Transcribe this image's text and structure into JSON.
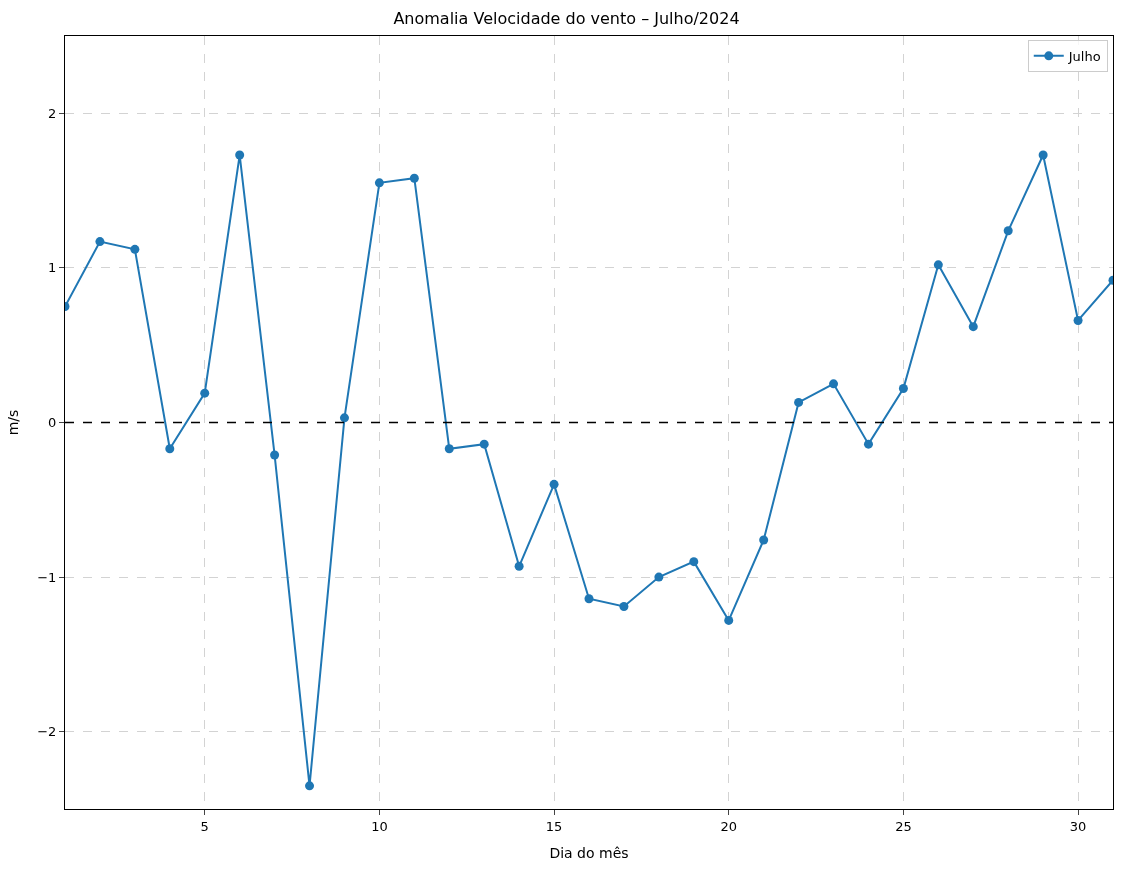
{
  "chart_data": {
    "type": "line",
    "title": "Anomalia Velocidade do vento – Julho/2024",
    "xlabel": "Dia do mês",
    "ylabel": "m/s",
    "x": [
      1,
      2,
      3,
      4,
      5,
      6,
      7,
      8,
      9,
      10,
      11,
      12,
      13,
      14,
      15,
      16,
      17,
      18,
      19,
      20,
      21,
      22,
      23,
      24,
      25,
      26,
      27,
      28,
      29,
      30,
      31
    ],
    "series": [
      {
        "name": "Julho",
        "color": "#1f77b4",
        "values": [
          0.75,
          1.17,
          1.12,
          -0.17,
          0.19,
          1.73,
          -0.21,
          -2.35,
          0.03,
          1.55,
          1.58,
          -0.17,
          -0.14,
          -0.93,
          -0.4,
          -1.14,
          -1.19,
          -1.0,
          -0.9,
          -1.28,
          -0.76,
          0.13,
          0.25,
          -0.14,
          0.22,
          1.02,
          0.62,
          1.24,
          1.73,
          0.66,
          0.92
        ]
      }
    ],
    "xlim": [
      1,
      31
    ],
    "xticks": [
      5,
      10,
      15,
      20,
      25,
      30
    ],
    "ylim": [
      -2.5,
      2.5
    ],
    "yticks": [
      {
        "value": -2,
        "label": "−2"
      },
      {
        "value": -1,
        "label": "−1"
      },
      0,
      1,
      2
    ],
    "ref_lines": [
      {
        "axis": "y",
        "value": 0,
        "color": "#000000",
        "line_style": "dashed"
      }
    ],
    "grid": true,
    "legend": "top right",
    "marker": "circle",
    "line_style": "solid"
  }
}
